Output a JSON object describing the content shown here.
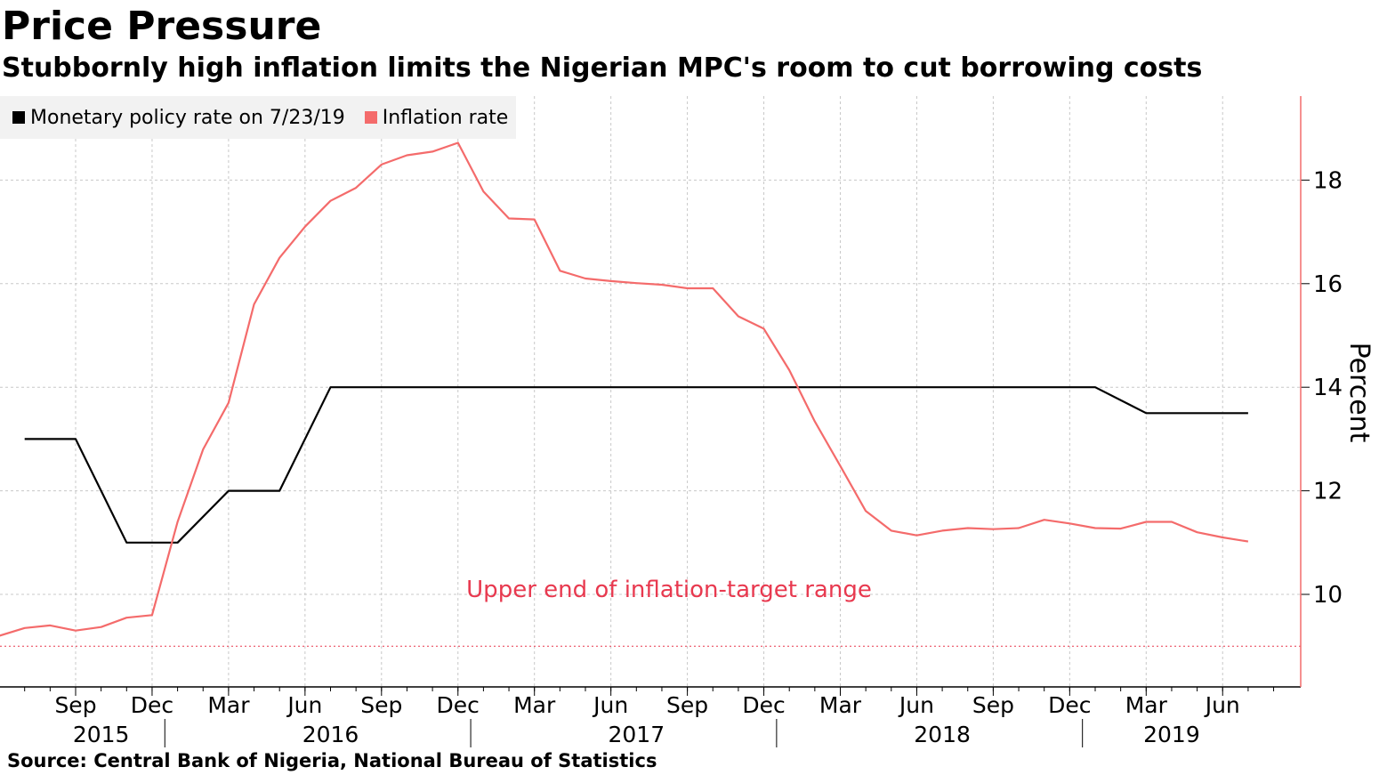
{
  "title": "Price Pressure",
  "subtitle": "Stubbornly high inflation limits the Nigerian MPC's room to cut borrowing costs",
  "source": "Source: Central Bank of Nigeria, National Bureau of Statistics",
  "colors": {
    "mpr": "#000000",
    "inflation": "#f46b6b",
    "target": "#e8394f",
    "grid": "#c8c8c8"
  },
  "chart_data": {
    "type": "line",
    "ylabel": "Percent",
    "ylim": [
      8.3,
      19.7
    ],
    "yticks": [
      10,
      12,
      14,
      16,
      18
    ],
    "x_axis_position": "bottom",
    "y_axis_position": "right",
    "grid": true,
    "legend_position": "top-left",
    "month_ticks": [
      {
        "date": "2015-09",
        "label": "Sep"
      },
      {
        "date": "2015-12",
        "label": "Dec"
      },
      {
        "date": "2016-03",
        "label": "Mar"
      },
      {
        "date": "2016-06",
        "label": "Jun"
      },
      {
        "date": "2016-09",
        "label": "Sep"
      },
      {
        "date": "2016-12",
        "label": "Dec"
      },
      {
        "date": "2017-03",
        "label": "Mar"
      },
      {
        "date": "2017-06",
        "label": "Jun"
      },
      {
        "date": "2017-09",
        "label": "Sep"
      },
      {
        "date": "2017-12",
        "label": "Dec"
      },
      {
        "date": "2018-03",
        "label": "Mar"
      },
      {
        "date": "2018-06",
        "label": "Jun"
      },
      {
        "date": "2018-09",
        "label": "Sep"
      },
      {
        "date": "2018-12",
        "label": "Dec"
      },
      {
        "date": "2019-03",
        "label": "Mar"
      },
      {
        "date": "2019-06",
        "label": "Jun"
      }
    ],
    "year_labels": [
      {
        "date": "2015-10",
        "label": "2015"
      },
      {
        "date": "2016-07",
        "label": "2016"
      },
      {
        "date": "2017-07",
        "label": "2017"
      },
      {
        "date": "2018-07",
        "label": "2018"
      },
      {
        "date": "2019-04",
        "label": "2019"
      }
    ],
    "year_separators": [
      "2016-01",
      "2017-01",
      "2018-01",
      "2019-01"
    ],
    "series": [
      {
        "name": "Monetary policy rate on 7/23/19",
        "color": "#000000",
        "points": [
          [
            "2015-07",
            13
          ],
          [
            "2015-09",
            13
          ],
          [
            "2015-11",
            11
          ],
          [
            "2016-01",
            11
          ],
          [
            "2016-03",
            12
          ],
          [
            "2016-05",
            12
          ],
          [
            "2016-07",
            14
          ],
          [
            "2019-01",
            14
          ],
          [
            "2019-03",
            13.5
          ],
          [
            "2019-07",
            13.5
          ]
        ]
      },
      {
        "name": "Inflation rate",
        "color": "#f46b6b",
        "points": [
          [
            "2015-05",
            9.15
          ],
          [
            "2015-06",
            9.2
          ],
          [
            "2015-07",
            9.35
          ],
          [
            "2015-08",
            9.4
          ],
          [
            "2015-09",
            9.3
          ],
          [
            "2015-10",
            9.37
          ],
          [
            "2015-11",
            9.55
          ],
          [
            "2015-12",
            9.6
          ],
          [
            "2016-01",
            11.4
          ],
          [
            "2016-02",
            12.8
          ],
          [
            "2016-03",
            13.7
          ],
          [
            "2016-04",
            15.6
          ],
          [
            "2016-05",
            16.5
          ],
          [
            "2016-06",
            17.1
          ],
          [
            "2016-07",
            17.6
          ],
          [
            "2016-08",
            17.85
          ],
          [
            "2016-09",
            18.3
          ],
          [
            "2016-10",
            18.48
          ],
          [
            "2016-11",
            18.55
          ],
          [
            "2016-12",
            18.72
          ],
          [
            "2017-01",
            17.78
          ],
          [
            "2017-02",
            17.26
          ],
          [
            "2017-03",
            17.24
          ],
          [
            "2017-04",
            16.25
          ],
          [
            "2017-05",
            16.1
          ],
          [
            "2017-06",
            16.05
          ],
          [
            "2017-07",
            16.01
          ],
          [
            "2017-08",
            15.98
          ],
          [
            "2017-09",
            15.91
          ],
          [
            "2017-10",
            15.91
          ],
          [
            "2017-11",
            15.37
          ],
          [
            "2017-12",
            15.13
          ],
          [
            "2018-01",
            14.33
          ],
          [
            "2018-02",
            13.34
          ],
          [
            "2018-03",
            12.48
          ],
          [
            "2018-04",
            11.61
          ],
          [
            "2018-05",
            11.23
          ],
          [
            "2018-06",
            11.14
          ],
          [
            "2018-07",
            11.23
          ],
          [
            "2018-08",
            11.28
          ],
          [
            "2018-09",
            11.26
          ],
          [
            "2018-10",
            11.28
          ],
          [
            "2018-11",
            11.44
          ],
          [
            "2018-12",
            11.37
          ],
          [
            "2019-01",
            11.28
          ],
          [
            "2019-02",
            11.27
          ],
          [
            "2019-03",
            11.4
          ],
          [
            "2019-04",
            11.4
          ],
          [
            "2019-05",
            11.2
          ],
          [
            "2019-06",
            11.1
          ],
          [
            "2019-07",
            11.02
          ]
        ]
      }
    ],
    "annotations": [
      {
        "text": "Upper end of inflation-target range",
        "value": 9,
        "color": "#e8394f"
      }
    ]
  }
}
